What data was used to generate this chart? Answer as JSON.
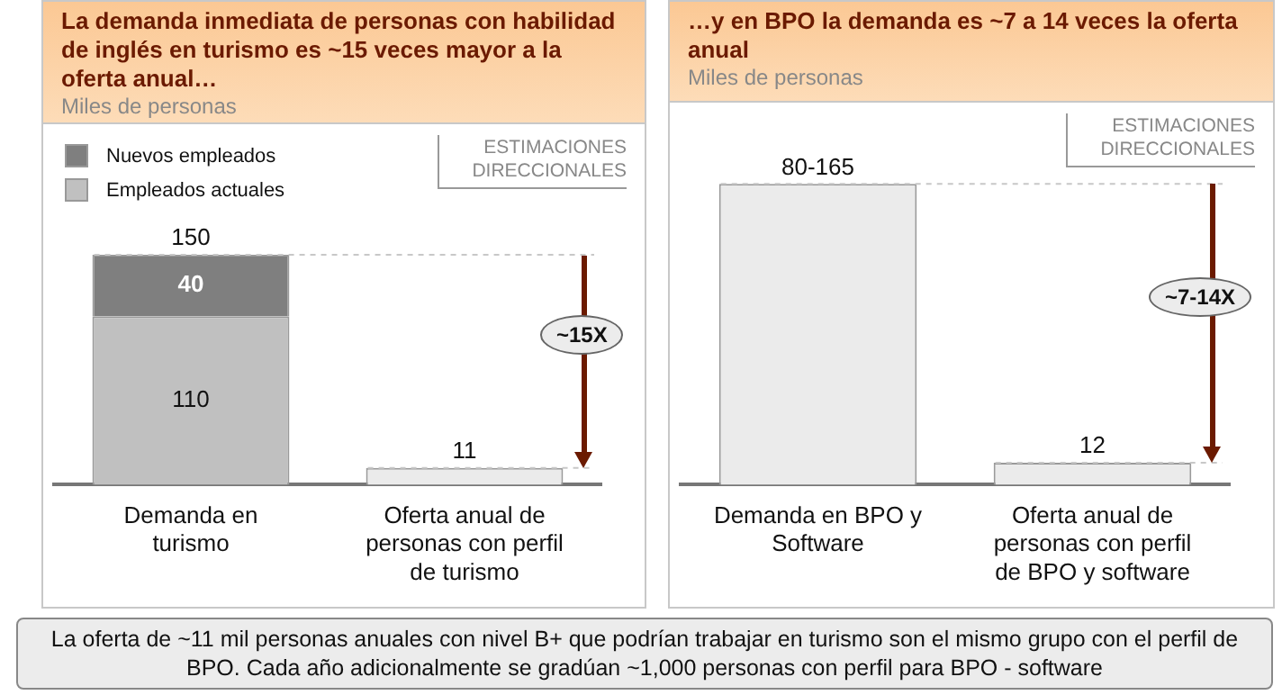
{
  "chart_data": [
    {
      "type": "bar",
      "stacked": true,
      "title": "La demanda inmediata de personas con habilidad de inglés en turismo es ~15 veces mayor a la oferta anual…",
      "subtitle": "Miles de personas",
      "categories": [
        "Demanda en turismo",
        "Oferta anual de personas con perfil de turismo"
      ],
      "series": [
        {
          "name": "Empleados actuales",
          "color": "#c0c0c0",
          "values": [
            110,
            null
          ],
          "value_labels": [
            "110",
            null
          ]
        },
        {
          "name": "Nuevos empleados",
          "color": "#7f7f7f",
          "values": [
            40,
            null
          ],
          "value_labels": [
            "40",
            null
          ]
        },
        {
          "color": "#ebebeb",
          "values": [
            null,
            11
          ],
          "value_labels": [
            null,
            "11"
          ]
        }
      ],
      "totals": [
        "150",
        null
      ],
      "legend": "top left",
      "ref_lines": [
        {
          "axis": "y",
          "value": 150,
          "line_style": "dashed",
          "color": "#c8c8c8"
        },
        {
          "axis": "y",
          "value": 11,
          "line_style": "dashed",
          "color": "#c8c8c8"
        }
      ],
      "annotations": [
        "ESTIMACIONES DIRECCIONALES",
        "~15X"
      ]
    },
    {
      "type": "bar",
      "title": "…y en BPO la demanda es ~7 a 14 veces la oferta anual",
      "subtitle": "Miles de personas",
      "categories": [
        "Demanda en BPO y Software",
        "Oferta anual de personas con perfil de BPO y software"
      ],
      "values": [
        165,
        12
      ],
      "colors": [
        "#ebebeb",
        "#ebebeb"
      ],
      "value_labels": [
        "80-165",
        "12"
      ],
      "ref_lines": [
        {
          "axis": "y",
          "value": 165,
          "line_style": "dashed",
          "color": "#c8c8c8"
        },
        {
          "axis": "y",
          "value": 12,
          "line_style": "dashed",
          "color": "#c8c8c8"
        }
      ],
      "annotations": [
        "ESTIMACIONES DIRECCIONALES",
        "~7-14X",
        "La oferta de ~11 mil personas anuales con nivel B+ que podrían trabajar en turismo son el mismo grupo con el perfil de  BPO.  Cada año adicionalmente se gradúan ~1,000 personas con perfil para BPO - software"
      ]
    }
  ]
}
